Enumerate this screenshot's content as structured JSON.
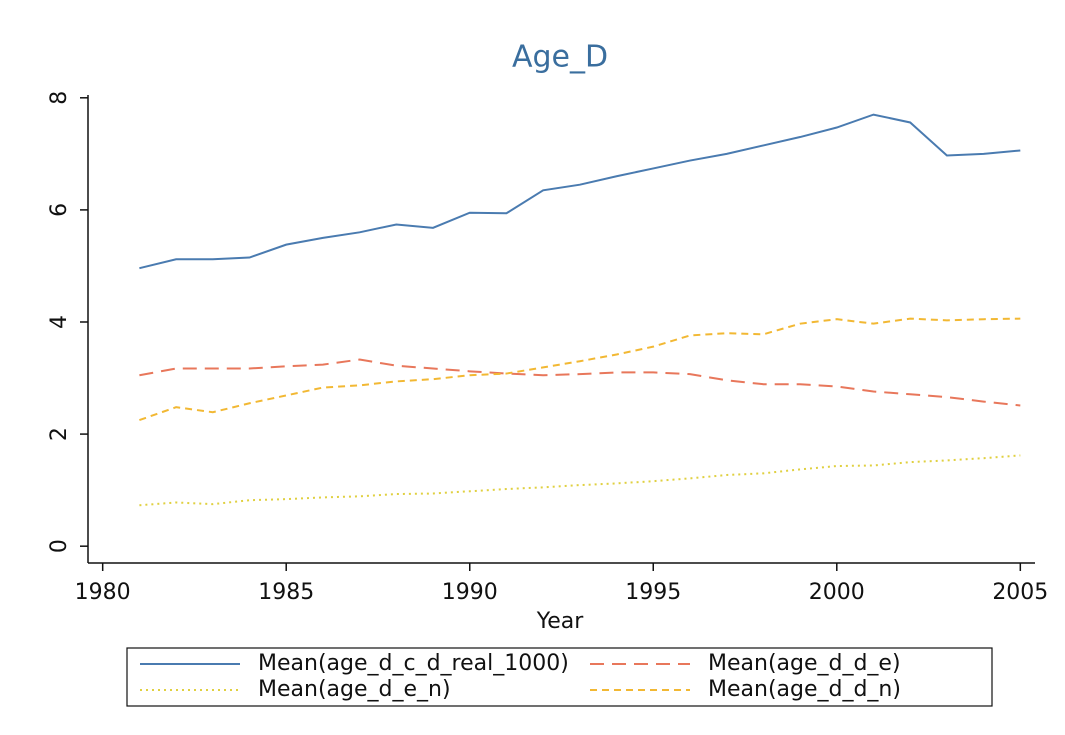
{
  "chart_data": {
    "type": "line",
    "title": "Age_D",
    "x_label": "Year",
    "x": [
      1981,
      1982,
      1983,
      1984,
      1985,
      1986,
      1987,
      1988,
      1989,
      1990,
      1991,
      1992,
      1993,
      1994,
      1995,
      1996,
      1997,
      1998,
      1999,
      2000,
      2001,
      2002,
      2003,
      2004,
      2005
    ],
    "series": [
      {
        "name": "Mean(age_d_c_d_real_1000)",
        "color": "#4a7bb0",
        "dash": "solid",
        "values": [
          4.96,
          5.12,
          5.12,
          5.15,
          5.38,
          5.5,
          5.6,
          5.74,
          5.68,
          5.95,
          5.94,
          6.35,
          6.45,
          6.6,
          6.74,
          6.88,
          7.0,
          7.15,
          7.3,
          7.47,
          7.7,
          7.56,
          6.97,
          7.0,
          7.06
        ]
      },
      {
        "name": "Mean(age_d_d_e)",
        "color": "#e8775b",
        "dash": "long-dash",
        "values": [
          3.05,
          3.17,
          3.17,
          3.17,
          3.21,
          3.24,
          3.33,
          3.22,
          3.17,
          3.12,
          3.08,
          3.05,
          3.07,
          3.1,
          3.1,
          3.07,
          2.96,
          2.89,
          2.89,
          2.85,
          2.76,
          2.71,
          2.66,
          2.58,
          2.51
        ]
      },
      {
        "name": "Mean(age_d_e_n)",
        "color": "#e0d040",
        "dash": "dotted",
        "values": [
          0.73,
          0.78,
          0.75,
          0.82,
          0.84,
          0.87,
          0.89,
          0.93,
          0.94,
          0.98,
          1.02,
          1.05,
          1.09,
          1.12,
          1.16,
          1.21,
          1.27,
          1.3,
          1.37,
          1.43,
          1.44,
          1.5,
          1.53,
          1.57,
          1.62
        ]
      },
      {
        "name": "Mean(age_d_d_n)",
        "color": "#f2b833",
        "dash": "short-dash",
        "values": [
          2.25,
          2.48,
          2.39,
          2.55,
          2.69,
          2.83,
          2.87,
          2.94,
          2.98,
          3.05,
          3.08,
          3.19,
          3.3,
          3.42,
          3.56,
          3.76,
          3.8,
          3.78,
          3.97,
          4.05,
          3.97,
          4.06,
          4.03,
          4.05,
          4.06
        ]
      }
    ],
    "xlim": [
      1979.6,
      2005.4
    ],
    "xticks": [
      1980,
      1985,
      1990,
      1995,
      2000,
      2005
    ],
    "ylim": [
      -0.3,
      8.05
    ],
    "yticks": [
      0,
      2,
      4,
      6,
      8
    ],
    "grid": false,
    "legend": "bottom"
  }
}
